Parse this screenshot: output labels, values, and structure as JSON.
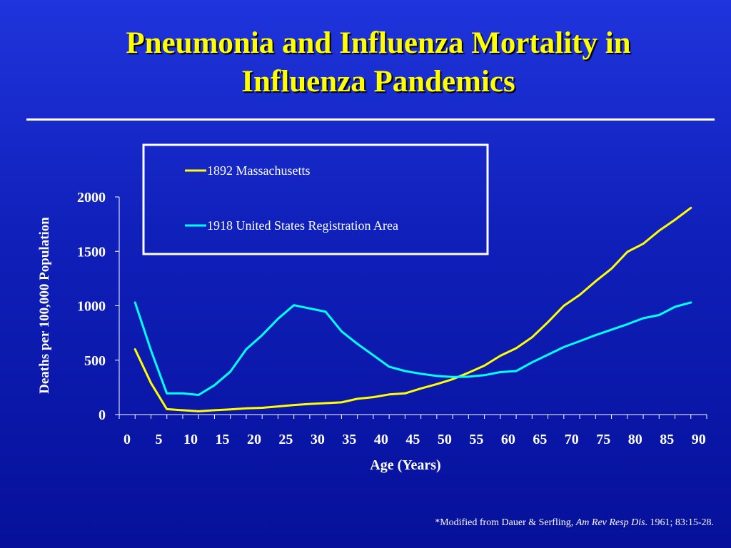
{
  "slide": {
    "title_line1": "Pneumonia and Influenza Mortality in",
    "title_line2": "Influenza Pandemics",
    "footnote_prefix": "*Modified from Dauer & Serfling, ",
    "footnote_journal": "Am Rev Resp Dis",
    "footnote_suffix": ". 1961; 83:15-28."
  },
  "colors": {
    "title": "#ffff00",
    "series_1892": "#ffff00",
    "series_1918": "#00ffff",
    "axis": "#ffffff",
    "background": "#1424c8"
  },
  "chart_data": {
    "type": "line",
    "title": "Pneumonia and Influenza Mortality in Influenza Pandemics",
    "xlabel": "Age (Years)",
    "ylabel": "Deaths per 100,000 Population",
    "xlim": [
      0,
      92.5
    ],
    "ylim": [
      0,
      2000
    ],
    "xticks": [
      0,
      5,
      10,
      15,
      20,
      25,
      30,
      35,
      40,
      45,
      50,
      55,
      60,
      65,
      70,
      75,
      80,
      85,
      90
    ],
    "yticks": [
      0,
      500,
      1000,
      1500,
      2000
    ],
    "grid": false,
    "legend_position": "top",
    "series": [
      {
        "name": "1892 Massachusetts",
        "color": "#ffff00",
        "x": [
          2.5,
          5,
          7.5,
          10,
          12.5,
          15,
          17.5,
          20,
          22.5,
          25,
          27.5,
          30,
          32.5,
          35,
          37.5,
          40,
          42.5,
          45,
          47.5,
          50,
          52.5,
          55,
          57.5,
          60,
          62.5,
          65,
          67.5,
          70,
          72.5,
          75,
          77.5,
          80,
          82.5,
          85,
          87.5,
          90
        ],
        "y": [
          600,
          290,
          50,
          40,
          30,
          40,
          48,
          58,
          62,
          75,
          88,
          98,
          105,
          112,
          145,
          160,
          185,
          195,
          240,
          280,
          325,
          385,
          450,
          540,
          610,
          710,
          850,
          1000,
          1100,
          1225,
          1340,
          1495,
          1570,
          1690,
          1790,
          1900
        ]
      },
      {
        "name": "1918 United States Registration Area",
        "color": "#00ffff",
        "x": [
          2.5,
          5,
          7.5,
          10,
          12.5,
          15,
          17.5,
          20,
          22.5,
          25,
          27.5,
          30,
          32.5,
          35,
          37.5,
          40,
          42.5,
          45,
          47.5,
          50,
          52.5,
          55,
          57.5,
          60,
          62.5,
          65,
          67.5,
          70,
          72.5,
          75,
          77.5,
          80,
          82.5,
          85,
          87.5,
          90
        ],
        "y": [
          1030,
          590,
          195,
          195,
          180,
          270,
          395,
          600,
          730,
          880,
          1005,
          975,
          945,
          765,
          650,
          545,
          440,
          400,
          375,
          355,
          345,
          348,
          362,
          390,
          400,
          480,
          550,
          620,
          675,
          730,
          780,
          830,
          885,
          915,
          990,
          1030
        ]
      }
    ]
  }
}
